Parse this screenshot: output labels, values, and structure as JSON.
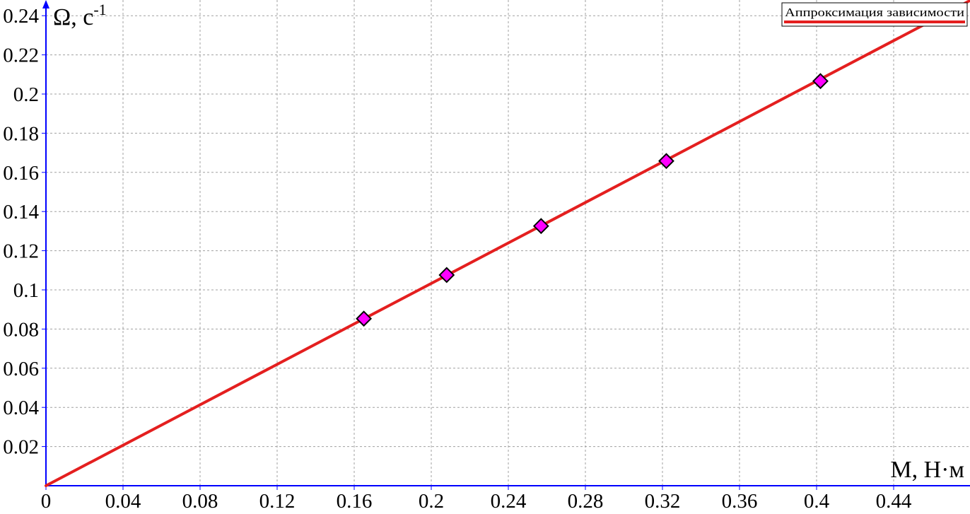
{
  "chart_data": {
    "type": "scatter",
    "ylabel_main": "Ω, с",
    "ylabel_sup": "-1",
    "xlabel": "M, Н·м",
    "legend": "Аппроксимация зависимости",
    "xlim": [
      0,
      0.485
    ],
    "ylim": [
      0,
      0.245
    ],
    "x_ticks": [
      "0",
      "0.04",
      "0.08",
      "0.12",
      "0.16",
      "0.2",
      "0.24",
      "0.28",
      "0.32",
      "0.36",
      "0.4",
      "0.44"
    ],
    "y_ticks": [
      "0.02",
      "0.04",
      "0.06",
      "0.08",
      "0.1",
      "0.12",
      "0.14",
      "0.16",
      "0.18",
      "0.2",
      "0.22",
      "0.24"
    ],
    "points": [
      {
        "x": 0.165,
        "y": 0.0853
      },
      {
        "x": 0.208,
        "y": 0.1076
      },
      {
        "x": 0.257,
        "y": 0.1326
      },
      {
        "x": 0.322,
        "y": 0.1658
      },
      {
        "x": 0.402,
        "y": 0.2066
      }
    ],
    "fit_line": {
      "x": [
        0,
        0.485
      ],
      "y": [
        0,
        0.2505
      ]
    },
    "grid": true,
    "legend_position": "top-right",
    "colors": {
      "axis": "#0000ff",
      "grid": "#a0a0a0",
      "line": "#e41f1f",
      "marker_fill": "#ff00ff",
      "marker_stroke": "#000000"
    }
  }
}
